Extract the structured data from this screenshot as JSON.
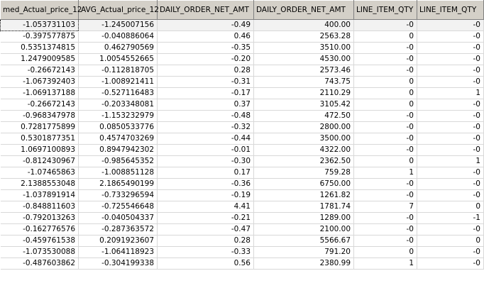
{
  "columns": [
    "med_Actual_price_12",
    "AVG_Actual_price_12",
    "DAILY_ORDER_NET_AMT",
    "DAILY_ORDER_NET_AMT",
    "LINE_ITEM_QTY",
    "LINE_ITEM_QTY"
  ],
  "rows": [
    [
      "-1.053731103",
      "-1.245007156",
      "-0.49",
      "400.00",
      "-0",
      "-0"
    ],
    [
      "-0.397577875",
      "-0.040886064",
      "0.46",
      "2563.28",
      "0",
      "-0"
    ],
    [
      "0.5351374815",
      "0.462790569",
      "-0.35",
      "3510.00",
      "-0",
      "-0"
    ],
    [
      "1.2479009585",
      "1.0054552665",
      "-0.20",
      "4530.00",
      "-0",
      "-0"
    ],
    [
      "-0.26672143",
      "-0.112818705",
      "0.28",
      "2573.46",
      "-0",
      "-0"
    ],
    [
      "-1.067392403",
      "-1.008921411",
      "-0.31",
      "743.75",
      "0",
      "-0"
    ],
    [
      "-1.069137188",
      "-0.527116483",
      "-0.17",
      "2110.29",
      "0",
      "1"
    ],
    [
      "-0.26672143",
      "-0.203348081",
      "0.37",
      "3105.42",
      "0",
      "-0"
    ],
    [
      "-0.968347978",
      "-1.153232979",
      "-0.48",
      "472.50",
      "-0",
      "-0"
    ],
    [
      "0.7281775899",
      "0.0850533776",
      "-0.32",
      "2800.00",
      "-0",
      "-0"
    ],
    [
      "0.5301877351",
      "0.4574703269",
      "-0.44",
      "3500.00",
      "-0",
      "-0"
    ],
    [
      "1.0697100893",
      "0.8947942302",
      "-0.01",
      "4322.00",
      "-0",
      "-0"
    ],
    [
      "-0.812430967",
      "-0.985645352",
      "-0.30",
      "2362.50",
      "0",
      "1"
    ],
    [
      "-1.07465863",
      "-1.008851128",
      "0.17",
      "759.28",
      "1",
      "-0"
    ],
    [
      "2.1388553048",
      "2.1865490199",
      "-0.36",
      "6750.00",
      "-0",
      "-0"
    ],
    [
      "-1.037891914",
      "-0.733296594",
      "-0.19",
      "1261.82",
      "-0",
      "-0"
    ],
    [
      "-0.848811603",
      "-0.725546648",
      "4.41",
      "1781.74",
      "7",
      "0"
    ],
    [
      "-0.792013263",
      "-0.040504337",
      "-0.21",
      "1289.00",
      "-0",
      "-1"
    ],
    [
      "-0.162776576",
      "-0.287363572",
      "-0.47",
      "2100.00",
      "-0",
      "-0"
    ],
    [
      "-0.459761538",
      "0.2091923607",
      "0.28",
      "5566.67",
      "-0",
      "0"
    ],
    [
      "-1.073530088",
      "-1.064118923",
      "-0.33",
      "791.20",
      "0",
      "-0"
    ],
    [
      "-0.487603862",
      "-0.304199338",
      "0.56",
      "2380.99",
      "1",
      "-0"
    ]
  ],
  "selected_row": 0
}
